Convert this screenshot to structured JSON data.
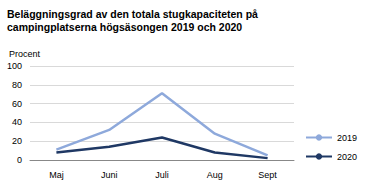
{
  "chart_data": {
    "type": "line",
    "title": "Beläggningsgrad av den totala stugkapaciteten på campingplatserna högsäsongen 2019 och 2020",
    "y_label": "Procent",
    "categories": [
      "Maj",
      "Juni",
      "Juli",
      "Aug",
      "Sept"
    ],
    "series": [
      {
        "name": "2019",
        "color": "#8ea9db",
        "values": [
          11,
          32,
          71,
          28,
          5
        ]
      },
      {
        "name": "2020",
        "color": "#1f3864",
        "values": [
          8,
          14,
          24,
          8,
          2
        ]
      }
    ],
    "ylim": [
      0,
      100
    ],
    "yticks": [
      0,
      20,
      40,
      60,
      80,
      100
    ],
    "grid": true,
    "legend": "right"
  }
}
